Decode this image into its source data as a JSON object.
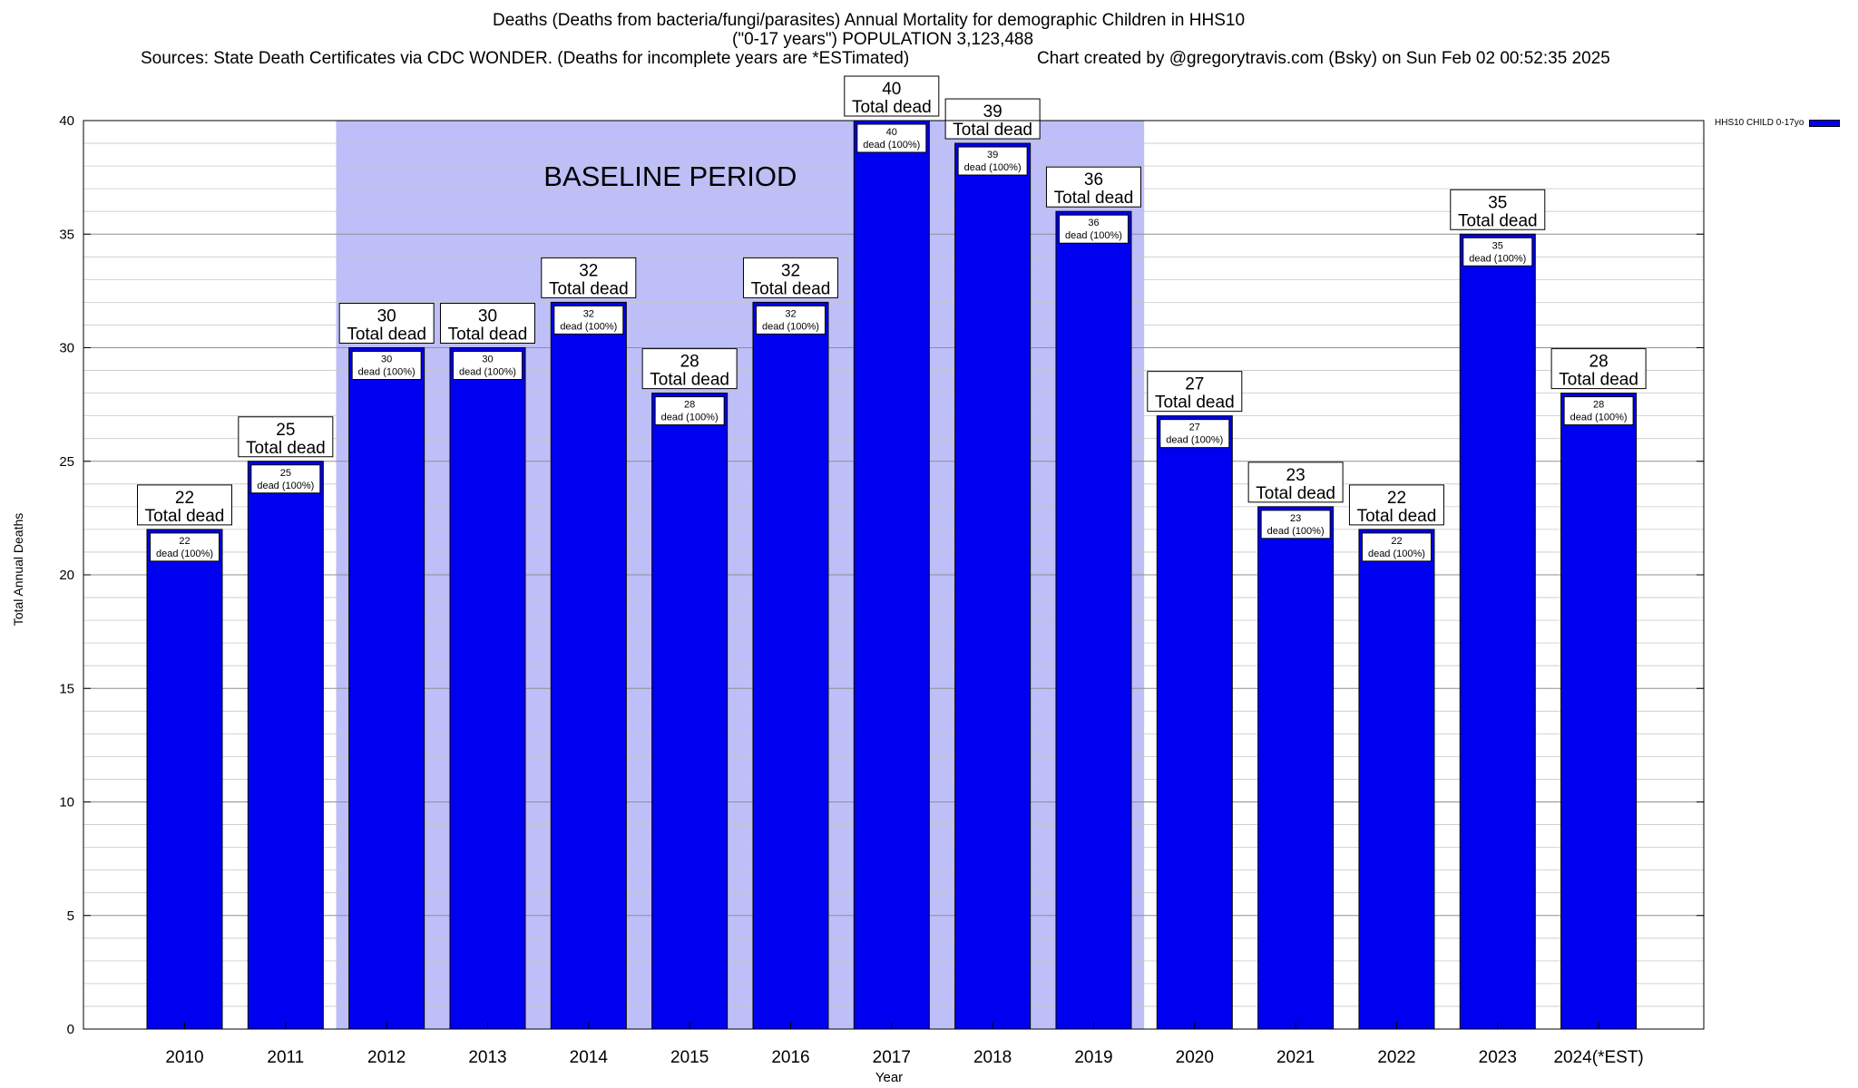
{
  "title": {
    "line1": "Deaths (Deaths from bacteria/fungi/parasites) Annual Mortality for demographic Children in HHS10",
    "line2": "(\"0-17 years\") POPULATION 3,123,488",
    "line3a": "Sources: State Death Certificates via CDC WONDER. (Deaths for incomplete years are *ESTimated)",
    "line3b": "Chart created by @gregorytravis.com (Bsky) on Sun Feb 02 00:52:35 2025"
  },
  "legend": {
    "label": "HHS10 CHILD 0-17yo",
    "color": "#0000f0"
  },
  "chart_data": {
    "type": "bar",
    "categories": [
      "2010",
      "2011",
      "2012",
      "2013",
      "2014",
      "2015",
      "2016",
      "2017",
      "2018",
      "2019",
      "2020",
      "2021",
      "2022",
      "2023",
      "2024(*EST)"
    ],
    "series": [
      {
        "name": "HHS10 CHILD 0-17yo",
        "values": [
          22,
          25,
          30,
          30,
          32,
          28,
          32,
          40,
          39,
          36,
          27,
          23,
          22,
          35,
          28
        ]
      }
    ],
    "xlabel": "Year",
    "ylabel": "Total Annual Deaths",
    "ylim": [
      0,
      40
    ],
    "yticks": [
      0,
      5,
      10,
      15,
      20,
      25,
      30,
      35,
      40
    ],
    "grid": true,
    "legend_position": "top-right",
    "bar_color": "#0000f0",
    "annotation": {
      "text": "BASELINE PERIOD",
      "from": "2012",
      "to": "2019",
      "color": "#bebef8"
    },
    "bar_label_top": "Total dead",
    "bar_label_inner": "dead (100%)"
  }
}
